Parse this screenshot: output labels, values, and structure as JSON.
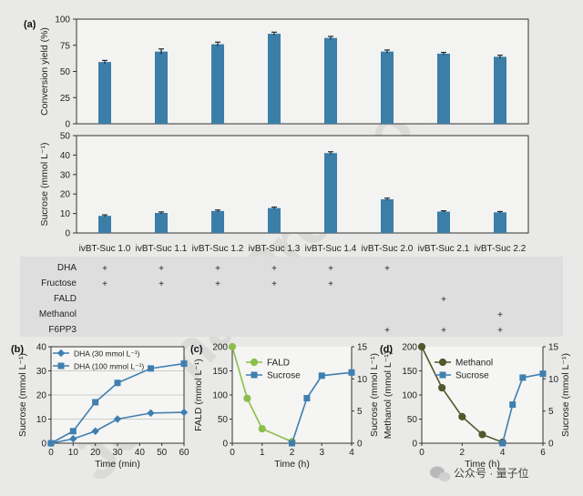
{
  "panel_labels": [
    "(a)",
    "(b)",
    "(c)",
    "(d)"
  ],
  "watermark": "Journal Pre-proofs",
  "footer": {
    "icon": "wechat-icon",
    "text": "公众号 · 量子位"
  },
  "colors": {
    "bar": "#3b7ea8",
    "blue": "#3f7fb0",
    "green": "#8dbe4c",
    "dark": "#4e5a2a"
  },
  "chart_data": [
    {
      "type": "bar",
      "title": "",
      "ylabel": "Conversion yield (%)",
      "ylim": [
        0,
        100
      ],
      "yticks": [
        0,
        25,
        50,
        75,
        100
      ],
      "categories": [
        "ivBT-Suc 1.0",
        "ivBT-Suc 1.1",
        "ivBT-Suc 1.2",
        "ivBT-Suc 1.3",
        "ivBT-Suc 1.4",
        "ivBT-Suc 2.0",
        "ivBT-Suc 2.1",
        "ivBT-Suc 2.2"
      ],
      "values": [
        59,
        69,
        76,
        86,
        82,
        69,
        67,
        64
      ],
      "errors": [
        1.5,
        2.5,
        2,
        1.5,
        1.5,
        1.5,
        1.2,
        1.5
      ]
    },
    {
      "type": "bar",
      "title": "",
      "ylabel": "Sucrose (mmol L⁻¹)",
      "ylim": [
        0,
        50
      ],
      "yticks": [
        0,
        10,
        20,
        30,
        40,
        50
      ],
      "categories": [
        "ivBT-Suc 1.0",
        "ivBT-Suc 1.1",
        "ivBT-Suc 1.2",
        "ivBT-Suc 1.3",
        "ivBT-Suc 1.4",
        "ivBT-Suc 2.0",
        "ivBT-Suc 2.1",
        "ivBT-Suc 2.2"
      ],
      "values": [
        8.8,
        10.3,
        11.3,
        12.8,
        41,
        17.3,
        11,
        10.6
      ],
      "errors": [
        0.5,
        0.5,
        0.5,
        0.5,
        0.7,
        0.6,
        0.4,
        0.4
      ]
    },
    {
      "type": "table",
      "rows": [
        {
          "label": "DHA",
          "marks": [
            true,
            true,
            true,
            true,
            true,
            true,
            false,
            false
          ]
        },
        {
          "label": "Fructose",
          "marks": [
            true,
            true,
            true,
            true,
            true,
            false,
            false,
            false
          ]
        },
        {
          "label": "FALD",
          "marks": [
            false,
            false,
            false,
            false,
            false,
            false,
            true,
            false
          ]
        },
        {
          "label": "Methanol",
          "marks": [
            false,
            false,
            false,
            false,
            false,
            false,
            false,
            true
          ]
        },
        {
          "label": "F6PP3",
          "marks": [
            false,
            false,
            false,
            false,
            false,
            true,
            true,
            true
          ]
        }
      ],
      "mark_symbol": "+"
    },
    {
      "type": "line",
      "title": "",
      "xlabel": "Time (min)",
      "ylabel": "Sucrose (mmol L⁻¹)",
      "xlim": [
        0,
        60
      ],
      "ylim": [
        0,
        40
      ],
      "xticks": [
        0,
        10,
        20,
        30,
        40,
        50,
        60
      ],
      "yticks": [
        0,
        10,
        20,
        30,
        40
      ],
      "legend": "top-left",
      "series": [
        {
          "name": "DHA (30 mmol L⁻¹)",
          "marker": "diamond",
          "x": [
            0,
            10,
            20,
            30,
            45,
            60
          ],
          "y": [
            0,
            1.8,
            5,
            10,
            12.5,
            12.8
          ],
          "err": [
            0,
            0.3,
            1,
            0.5,
            0.3,
            0.3
          ]
        },
        {
          "name": "DHA (100 mmol L⁻¹)",
          "marker": "square",
          "x": [
            0,
            10,
            20,
            30,
            45,
            60
          ],
          "y": [
            0,
            5,
            17,
            25,
            31,
            33
          ],
          "err": [
            0,
            0.3,
            0.5,
            1.2,
            0.5,
            0.8
          ]
        }
      ]
    },
    {
      "type": "line",
      "title": "",
      "xlabel": "Time (h)",
      "ylabel": "FALD (mmol L⁻¹)",
      "y2label": "Sucrose (mmol L⁻¹)",
      "xlim": [
        0,
        4
      ],
      "ylim": [
        0,
        200
      ],
      "y2lim": [
        0,
        15
      ],
      "xticks": [
        0,
        1,
        2,
        3,
        4
      ],
      "yticks": [
        0,
        50,
        100,
        150,
        200
      ],
      "y2ticks": [
        0,
        5,
        10,
        15
      ],
      "legend": "top-right",
      "series": [
        {
          "name": "FALD",
          "marker": "circle",
          "axis": "left",
          "x": [
            0,
            0.5,
            1,
            2
          ],
          "y": [
            200,
            93,
            30,
            3
          ]
        },
        {
          "name": "Sucrose",
          "marker": "square",
          "axis": "right",
          "x": [
            2,
            2.5,
            3,
            4
          ],
          "y": [
            0,
            7,
            10.5,
            11
          ]
        }
      ]
    },
    {
      "type": "line",
      "title": "",
      "xlabel": "Time (h)",
      "ylabel": "Methanol (mmol L⁻¹)",
      "y2label": "Sucrose (mmol L⁻¹)",
      "xlim": [
        0,
        6
      ],
      "ylim": [
        0,
        200
      ],
      "y2lim": [
        0,
        15
      ],
      "xticks": [
        0,
        2,
        4,
        6
      ],
      "yticks": [
        0,
        50,
        100,
        150,
        200
      ],
      "y2ticks": [
        0,
        5,
        10,
        15
      ],
      "legend": "top-right",
      "series": [
        {
          "name": "Methanol",
          "marker": "circle",
          "axis": "left",
          "x": [
            0,
            1,
            2,
            3,
            4
          ],
          "y": [
            200,
            115,
            55,
            18,
            2
          ]
        },
        {
          "name": "Sucrose",
          "marker": "square",
          "axis": "right",
          "x": [
            4,
            4.5,
            5,
            6
          ],
          "y": [
            0,
            6,
            10.2,
            10.8
          ]
        }
      ]
    }
  ]
}
